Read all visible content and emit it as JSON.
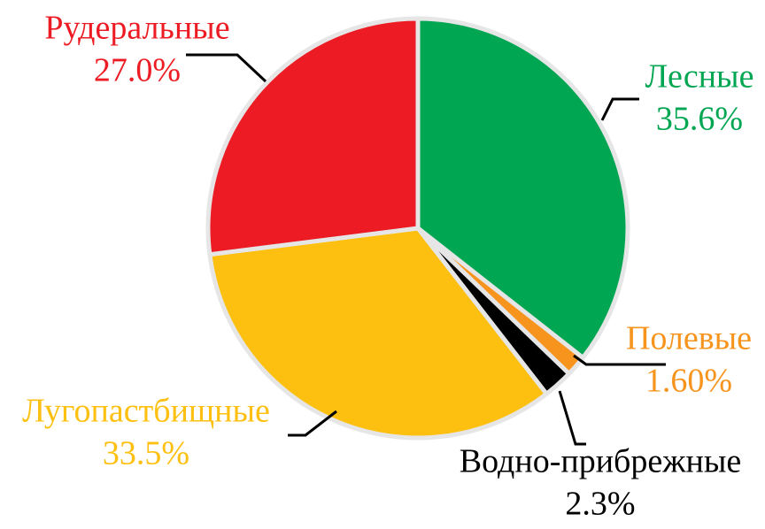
{
  "chart_data": {
    "type": "pie",
    "categories": [
      "Лесные",
      "Полевые",
      "Водно-прибрежные",
      "Лугопастбищные",
      "Рудеральные"
    ],
    "values": [
      35.6,
      1.6,
      2.3,
      33.5,
      27.0
    ],
    "value_labels": [
      "35.6%",
      "1.60%",
      "2.3%",
      "33.5%",
      "27.0%"
    ],
    "colors": [
      "#00a651",
      "#f7941d",
      "#000000",
      "#fdc010",
      "#ed1c24"
    ]
  }
}
